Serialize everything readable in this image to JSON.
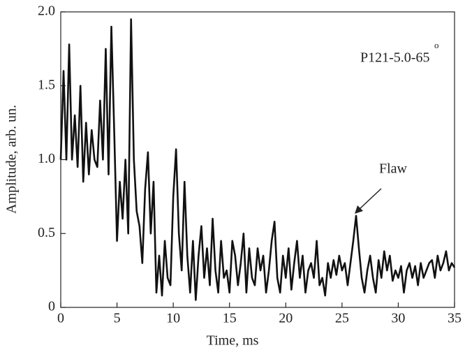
{
  "chart_data": {
    "type": "line",
    "xlabel": "Time, ms",
    "ylabel": "Amplitude, arb. un.",
    "annotations": [
      "P121-5.0-65",
      "o",
      "Flaw"
    ],
    "xlim": [
      0,
      35
    ],
    "ylim": [
      0,
      2.0
    ],
    "xticks": [
      0,
      5,
      10,
      15,
      20,
      25,
      30,
      35
    ],
    "yticks": [
      0,
      0.5,
      {
        "value": 1.0,
        "label": "1.0"
      },
      1.5,
      {
        "value": 2.0,
        "label": "2.0"
      }
    ],
    "x": [
      0,
      0.25,
      0.5,
      0.75,
      1,
      1.25,
      1.5,
      1.75,
      2,
      2.25,
      2.5,
      2.75,
      3,
      3.25,
      3.5,
      3.75,
      4,
      4.25,
      4.5,
      4.75,
      5,
      5.25,
      5.5,
      5.75,
      6,
      6.25,
      6.5,
      6.75,
      7,
      7.25,
      7.5,
      7.75,
      8,
      8.25,
      8.5,
      8.75,
      9,
      9.25,
      9.5,
      9.75,
      10,
      10.25,
      10.5,
      10.75,
      11,
      11.25,
      11.5,
      11.75,
      12,
      12.25,
      12.5,
      12.75,
      13,
      13.25,
      13.5,
      13.75,
      14,
      14.25,
      14.5,
      14.75,
      15,
      15.25,
      15.5,
      15.75,
      16,
      16.25,
      16.5,
      16.75,
      17,
      17.25,
      17.5,
      17.75,
      18,
      18.25,
      18.5,
      18.75,
      19,
      19.25,
      19.5,
      19.75,
      20,
      20.25,
      20.5,
      20.75,
      21,
      21.25,
      21.5,
      21.75,
      22,
      22.25,
      22.5,
      22.75,
      23,
      23.25,
      23.5,
      23.75,
      24,
      24.25,
      24.5,
      24.75,
      25,
      25.25,
      25.5,
      25.75,
      26,
      26.25,
      26.5,
      26.75,
      27,
      27.25,
      27.5,
      27.75,
      28,
      28.25,
      28.5,
      28.75,
      29,
      29.25,
      29.5,
      29.75,
      30,
      30.25,
      30.5,
      30.75,
      31,
      31.25,
      31.5,
      31.75,
      32,
      32.25,
      32.5,
      32.75,
      33,
      33.25,
      33.5,
      33.75,
      34,
      34.25,
      34.5,
      34.75,
      35
    ],
    "series": [
      {
        "color": "#111111",
        "values": [
          1.0,
          1.6,
          1.0,
          1.78,
          1.0,
          1.3,
          0.95,
          1.5,
          0.85,
          1.25,
          0.9,
          1.2,
          1.0,
          0.95,
          1.4,
          1.0,
          1.75,
          0.9,
          1.9,
          1.2,
          0.45,
          0.85,
          0.6,
          1.0,
          0.5,
          1.95,
          1.0,
          0.65,
          0.55,
          0.3,
          0.8,
          1.05,
          0.5,
          0.85,
          0.1,
          0.35,
          0.08,
          0.45,
          0.2,
          0.15,
          0.75,
          1.07,
          0.5,
          0.25,
          0.85,
          0.35,
          0.1,
          0.45,
          0.05,
          0.35,
          0.55,
          0.2,
          0.4,
          0.15,
          0.6,
          0.25,
          0.1,
          0.45,
          0.2,
          0.25,
          0.1,
          0.45,
          0.35,
          0.15,
          0.3,
          0.5,
          0.1,
          0.4,
          0.2,
          0.15,
          0.4,
          0.25,
          0.35,
          0.1,
          0.25,
          0.45,
          0.58,
          0.2,
          0.1,
          0.35,
          0.2,
          0.4,
          0.12,
          0.3,
          0.45,
          0.2,
          0.35,
          0.1,
          0.25,
          0.3,
          0.2,
          0.45,
          0.15,
          0.2,
          0.08,
          0.3,
          0.2,
          0.32,
          0.22,
          0.35,
          0.25,
          0.3,
          0.15,
          0.3,
          0.45,
          0.62,
          0.4,
          0.2,
          0.1,
          0.25,
          0.35,
          0.2,
          0.1,
          0.32,
          0.2,
          0.38,
          0.25,
          0.35,
          0.18,
          0.25,
          0.2,
          0.28,
          0.1,
          0.25,
          0.3,
          0.2,
          0.28,
          0.15,
          0.3,
          0.2,
          0.25,
          0.3,
          0.32,
          0.2,
          0.35,
          0.25,
          0.3,
          0.38,
          0.25,
          0.3,
          0.27
        ]
      }
    ]
  }
}
